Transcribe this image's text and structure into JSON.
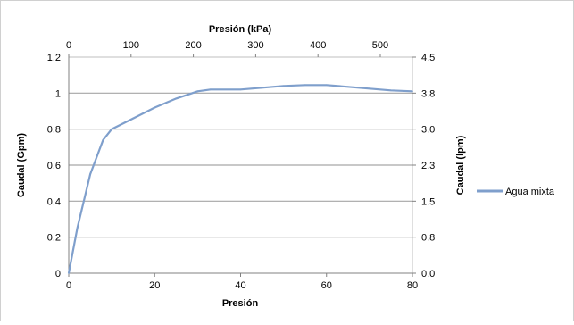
{
  "chart_data": {
    "type": "line",
    "xlabel": "Presión",
    "x2label": "Presión (kPa)",
    "ylabel": "Caudal (Gpm)",
    "y2label": "Caudal (lpm)",
    "xlim": [
      0,
      80
    ],
    "x2lim": [
      0,
      551.6
    ],
    "ylim": [
      0,
      1.2
    ],
    "y2lim": [
      0,
      4.5
    ],
    "xticks": [
      "0",
      "20",
      "40",
      "60",
      "80"
    ],
    "x2ticks": [
      "0",
      "100",
      "200",
      "300",
      "400",
      "500"
    ],
    "yticks": [
      "0",
      "0.2",
      "0.4",
      "0.6",
      "0.8",
      "1",
      "1.2"
    ],
    "y2ticks": [
      "0.0",
      "0.8",
      "1.5",
      "2.3",
      "3.0",
      "3.8",
      "4.5"
    ],
    "grid": "horizontal",
    "legend_position": "right",
    "series": [
      {
        "name": "Agua mixta",
        "color": "#7f9fcc",
        "x": [
          0,
          2,
          5,
          8,
          10,
          15,
          20,
          25,
          30,
          33,
          40,
          45,
          50,
          55,
          60,
          65,
          70,
          75,
          80
        ],
        "y": [
          0,
          0.25,
          0.55,
          0.74,
          0.8,
          0.86,
          0.92,
          0.97,
          1.01,
          1.02,
          1.02,
          1.03,
          1.04,
          1.045,
          1.045,
          1.035,
          1.025,
          1.015,
          1.01
        ]
      }
    ]
  }
}
